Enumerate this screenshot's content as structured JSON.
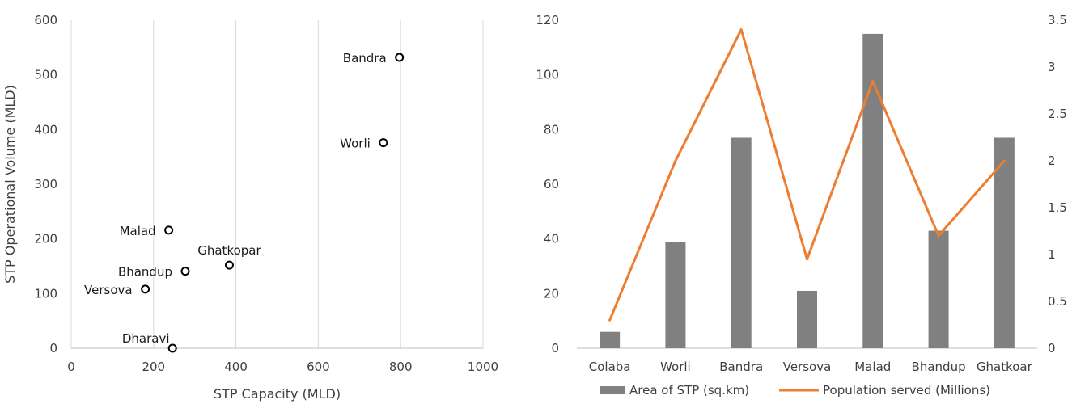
{
  "chart_data": [
    {
      "type": "scatter",
      "xlabel": "STP Capacity (MLD)",
      "ylabel": "STP Operational Volume (MLD)",
      "xlim": [
        0,
        1000
      ],
      "ylim": [
        0,
        600
      ],
      "xticks": [
        0,
        200,
        400,
        600,
        800,
        1000
      ],
      "yticks": [
        0,
        100,
        200,
        300,
        400,
        500,
        600
      ],
      "grid": "vertical",
      "points": [
        {
          "label": "Bandra",
          "x": 797,
          "y": 532
        },
        {
          "label": "Worli",
          "x": 758,
          "y": 376
        },
        {
          "label": "Malad",
          "x": 237,
          "y": 216
        },
        {
          "label": "Ghatkopar",
          "x": 384,
          "y": 152
        },
        {
          "label": "Bhandup",
          "x": 277,
          "y": 141
        },
        {
          "label": "Versova",
          "x": 180,
          "y": 108
        },
        {
          "label": "Dharavi",
          "x": 246,
          "y": 0
        }
      ]
    },
    {
      "type": "bar",
      "categories": [
        "Colaba",
        "Worli",
        "Bandra",
        "Versova",
        "Malad",
        "Bhandup",
        "Ghatkoar"
      ],
      "ylim": [
        0,
        120
      ],
      "y2lim": [
        0,
        3.5
      ],
      "yticks": [
        0,
        20,
        40,
        60,
        80,
        100,
        120
      ],
      "y2ticks": [
        "0",
        "0.5",
        "1",
        "1.5",
        "2",
        "2.5",
        "3",
        "3.5"
      ],
      "legend_position": "bottom",
      "series": [
        {
          "name": "Area of STP (sq.km)",
          "kind": "bar",
          "axis": "left",
          "color": "#808080",
          "values": [
            6,
            39,
            77,
            21,
            115,
            43,
            77
          ]
        },
        {
          "name": "Population served (Millions)",
          "kind": "line",
          "axis": "right",
          "color": "#ED7D31",
          "values": [
            0.3,
            2.0,
            3.4,
            0.95,
            2.85,
            1.2,
            2.0
          ]
        }
      ]
    }
  ]
}
